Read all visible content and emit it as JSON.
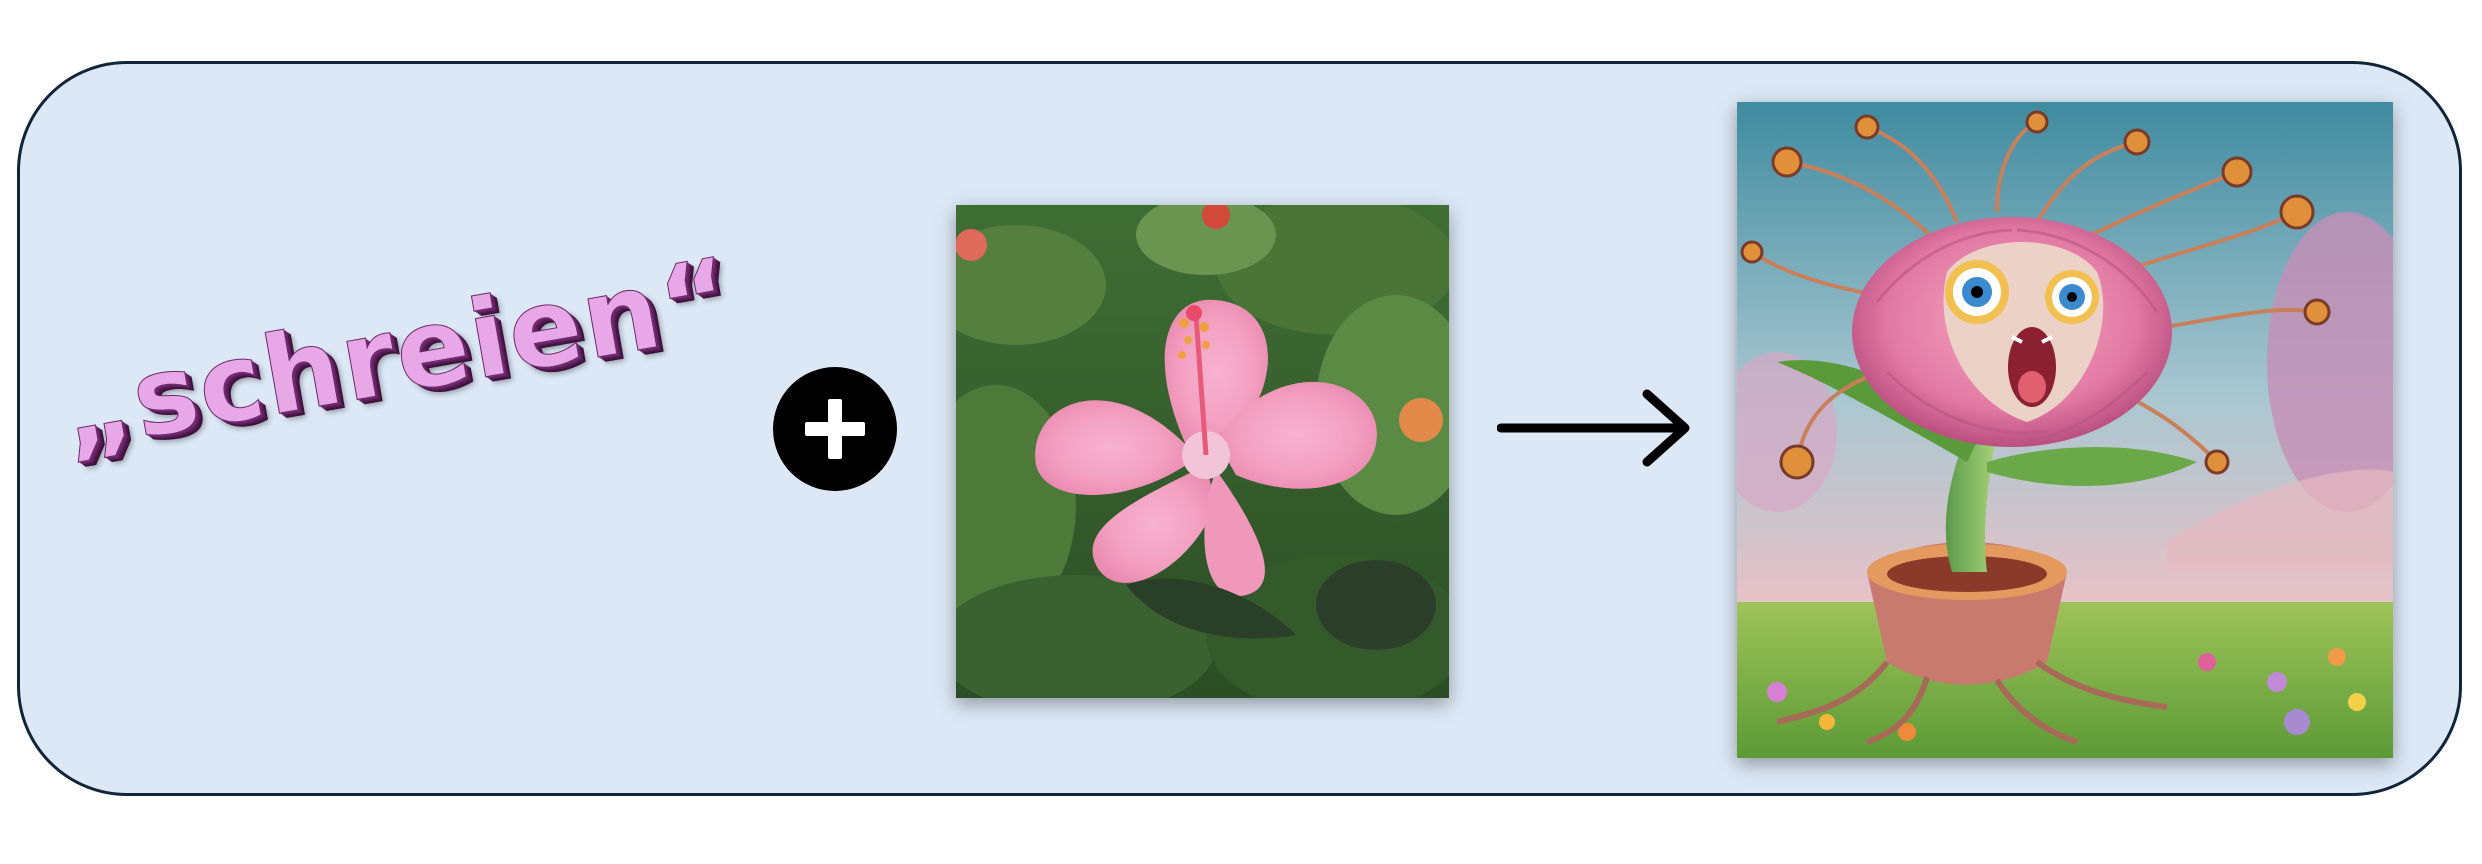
{
  "prompt_word": "„schreien“",
  "operator_symbol": "plus-icon",
  "result_symbol": "arrow-right-icon",
  "colors": {
    "panel_background": "#dce8f5",
    "panel_border": "#10253a",
    "word_fill": "#e8a8e8",
    "word_shadow": "#5c1f5b"
  }
}
